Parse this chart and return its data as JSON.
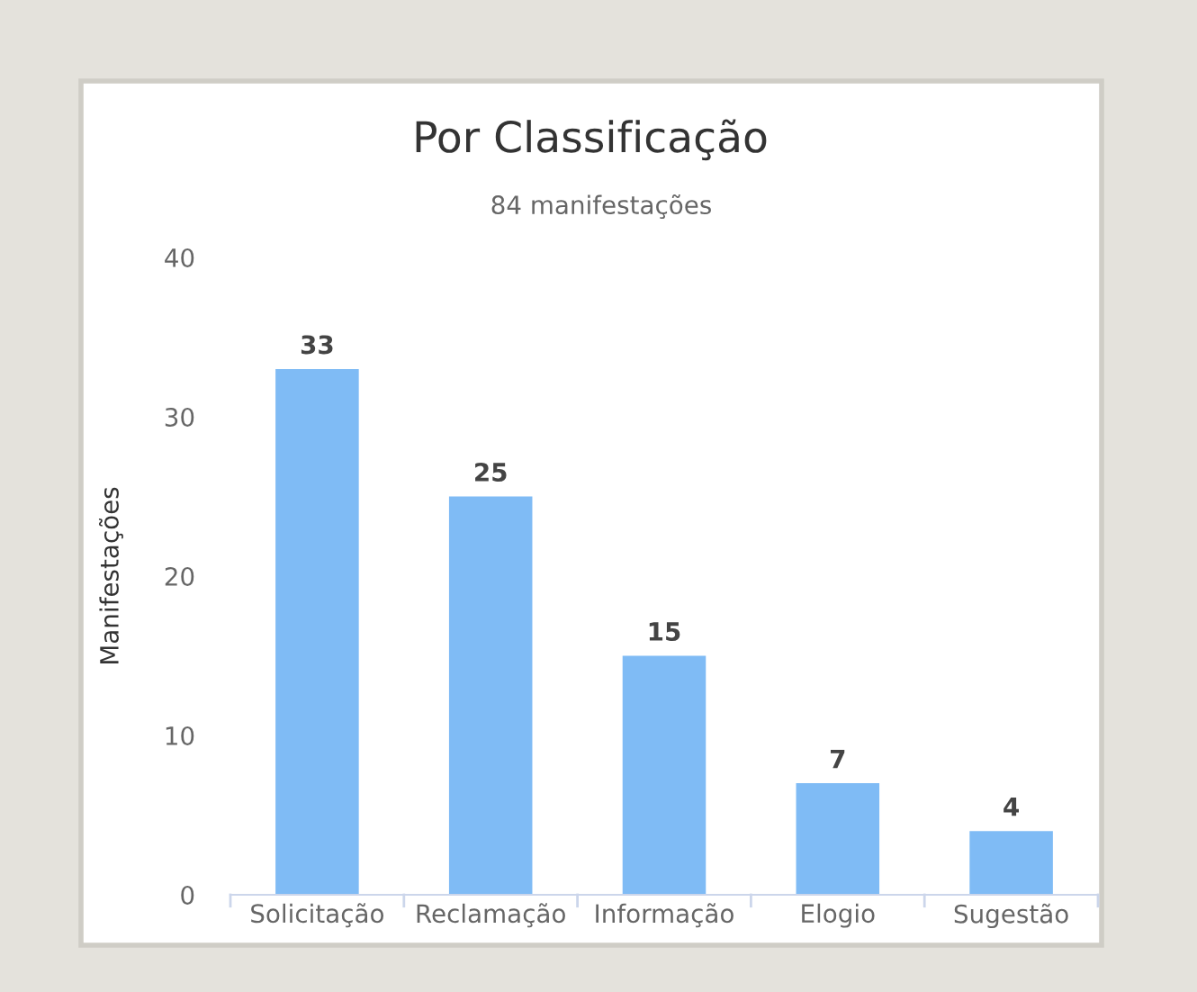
{
  "chart_data": {
    "type": "bar",
    "title": "Por Classificação",
    "subtitle": "84 manifestações",
    "ylabel": "Manifestações",
    "categories": [
      "Solicitação",
      "Reclamação",
      "Informação",
      "Elogio",
      "Sugestão"
    ],
    "values": [
      33,
      25,
      15,
      7,
      4
    ],
    "color": "#7fbbf5",
    "ylim": [
      0,
      40
    ],
    "yticks": [
      0,
      10,
      20,
      30,
      40
    ],
    "grid": false,
    "data_labels": true
  }
}
